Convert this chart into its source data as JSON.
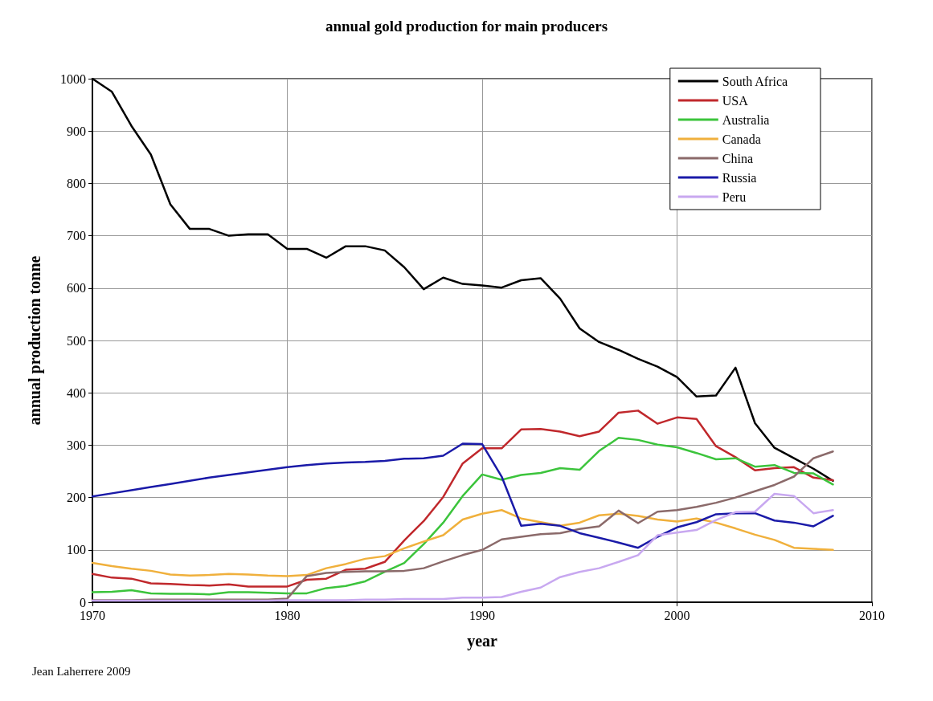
{
  "chart_data": {
    "type": "line",
    "title": "annual gold production for main producers",
    "xlabel": "year",
    "ylabel": "annual production tonne",
    "annotations": [
      "Jean Laherrere 2009"
    ],
    "x": [
      1970,
      1971,
      1972,
      1973,
      1974,
      1975,
      1976,
      1977,
      1978,
      1979,
      1980,
      1981,
      1982,
      1983,
      1984,
      1985,
      1986,
      1987,
      1988,
      1989,
      1990,
      1991,
      1992,
      1993,
      1994,
      1995,
      1996,
      1997,
      1998,
      1999,
      2000,
      2001,
      2002,
      2003,
      2004,
      2005,
      2006,
      2007,
      2008
    ],
    "series": [
      {
        "name": "South Africa",
        "color": "#000000",
        "values": [
          1000,
          975,
          910,
          855,
          760,
          713,
          713,
          700,
          703,
          703,
          675,
          675,
          658,
          680,
          680,
          672,
          640,
          598,
          620,
          608,
          605,
          601,
          615,
          619,
          580,
          523,
          497,
          482,
          465,
          450,
          430,
          393,
          395,
          448,
          342,
          295,
          275,
          255,
          232
        ]
      },
      {
        "name": "USA",
        "color": "#c0282c",
        "values": [
          54,
          47,
          45,
          36,
          35,
          33,
          32,
          34,
          30,
          30,
          30,
          43,
          45,
          62,
          64,
          77,
          118,
          155,
          201,
          265,
          294,
          294,
          330,
          331,
          326,
          317,
          326,
          362,
          366,
          341,
          353,
          350,
          298,
          277,
          252,
          256,
          258,
          238,
          233
        ]
      },
      {
        "name": "Australia",
        "color": "#3cc43c",
        "values": [
          19,
          20,
          23,
          17,
          16,
          16,
          15,
          19,
          19,
          18,
          17,
          17,
          27,
          31,
          40,
          58,
          75,
          111,
          152,
          203,
          244,
          234,
          243,
          247,
          256,
          253,
          289,
          314,
          310,
          301,
          296,
          285,
          273,
          275,
          259,
          262,
          247,
          246,
          225
        ]
      },
      {
        "name": "Canada",
        "color": "#f0b03c",
        "values": [
          75,
          69,
          64,
          60,
          53,
          51,
          52,
          54,
          53,
          51,
          50,
          52,
          65,
          73,
          83,
          88,
          103,
          116,
          128,
          158,
          169,
          176,
          160,
          153,
          146,
          152,
          166,
          169,
          165,
          158,
          154,
          160,
          152,
          141,
          129,
          119,
          104,
          102,
          100
        ]
      },
      {
        "name": "China",
        "color": "#8b6a6a",
        "values": [
          4,
          4,
          4,
          5,
          5,
          5,
          5,
          5,
          5,
          5,
          7,
          50,
          56,
          58,
          59,
          59,
          60,
          65,
          78,
          90,
          100,
          120,
          125,
          130,
          132,
          140,
          145,
          175,
          151,
          173,
          176,
          182,
          190,
          200,
          212,
          224,
          240,
          275,
          288
        ]
      },
      {
        "name": "Russia",
        "color": "#1a1aa8",
        "values": [
          202,
          208,
          214,
          220,
          226,
          232,
          238,
          243,
          248,
          253,
          258,
          262,
          265,
          267,
          268,
          270,
          274,
          275,
          280,
          303,
          302,
          240,
          146,
          150,
          146,
          132,
          123,
          114,
          104,
          125,
          143,
          153,
          168,
          170,
          170,
          156,
          152,
          145,
          165
        ]
      },
      {
        "name": "Peru",
        "color": "#c8a8f0",
        "values": [
          3,
          3,
          3,
          3,
          3,
          3,
          3,
          3,
          3,
          3,
          4,
          4,
          4,
          4,
          5,
          5,
          6,
          6,
          6,
          9,
          9,
          10,
          20,
          28,
          48,
          58,
          65,
          77,
          90,
          128,
          133,
          138,
          157,
          172,
          173,
          207,
          203,
          170,
          176
        ]
      }
    ],
    "xlim": [
      1970,
      2010
    ],
    "xticks": [
      1970,
      1980,
      1990,
      2000,
      2010
    ],
    "ylim": [
      0,
      1000
    ],
    "yticks": [
      0,
      100,
      200,
      300,
      400,
      500,
      600,
      700,
      800,
      900,
      1000
    ],
    "grid": true,
    "legend": "top right",
    "marker": "none",
    "line_style": "solid"
  }
}
